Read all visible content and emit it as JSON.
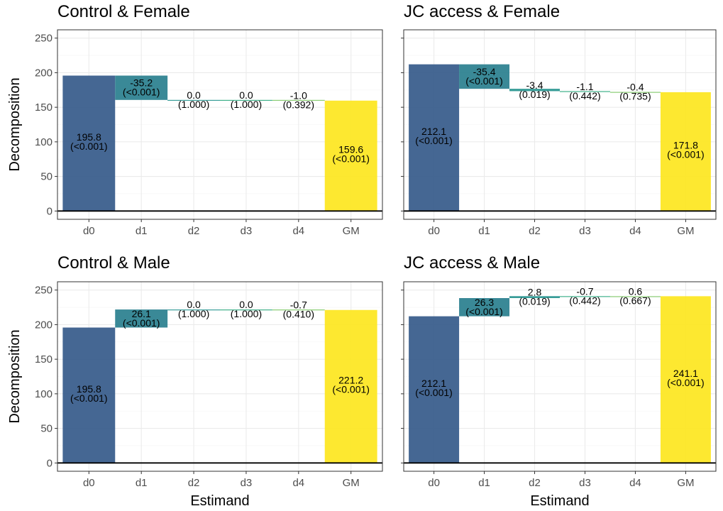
{
  "chart_data": {
    "type": "bar",
    "subtype": "waterfall",
    "xlabel": "Estimand",
    "ylabel": "Decomposition",
    "categories": [
      "d0",
      "d1",
      "d2",
      "d3",
      "d4",
      "GM"
    ],
    "ylim": [
      -12,
      262
    ],
    "yticks": [
      0,
      50,
      100,
      150,
      200,
      250
    ],
    "grid": true,
    "facet_columns": 2,
    "colors": {
      "d0": "#3b5f8d",
      "d1": "#2f8391",
      "d2": "#2d9892",
      "d3": "#35ad84",
      "d4": "#84c96b",
      "GM": "#fde725"
    },
    "panels": [
      {
        "title": "Control & Female",
        "values": [
          195.8,
          -35.2,
          0.0,
          0.0,
          -1.0,
          159.6
        ],
        "value_labels": [
          "195.8",
          "-35.2",
          "0.0",
          "0.0",
          "-1.0",
          "159.6"
        ],
        "p_labels": [
          "(<0.001)",
          "(<0.001)",
          "(1.000)",
          "(1.000)",
          "(0.392)",
          "(<0.001)"
        ]
      },
      {
        "title": "JC access & Female",
        "values": [
          212.1,
          -35.4,
          -3.4,
          -1.1,
          -0.4,
          171.8
        ],
        "value_labels": [
          "212.1",
          "-35.4",
          "-3.4",
          "-1.1",
          "-0.4",
          "171.8"
        ],
        "p_labels": [
          "(<0.001)",
          "(<0.001)",
          "(0.019)",
          "(0.442)",
          "(0.735)",
          "(<0.001)"
        ]
      },
      {
        "title": "Control & Male",
        "values": [
          195.8,
          26.1,
          0.0,
          0.0,
          -0.7,
          221.2
        ],
        "value_labels": [
          "195.8",
          "26.1",
          "0.0",
          "0.0",
          "-0.7",
          "221.2"
        ],
        "p_labels": [
          "(<0.001)",
          "(<0.001)",
          "(1.000)",
          "(1.000)",
          "(0.410)",
          "(<0.001)"
        ]
      },
      {
        "title": "JC access & Male",
        "values": [
          212.1,
          26.3,
          2.8,
          -0.7,
          0.6,
          241.1
        ],
        "value_labels": [
          "212.1",
          "26.3",
          "2.8",
          "-0.7",
          "0.6",
          "241.1"
        ],
        "p_labels": [
          "(<0.001)",
          "(<0.001)",
          "(0.019)",
          "(0.442)",
          "(0.667)",
          "(<0.001)"
        ]
      }
    ]
  }
}
